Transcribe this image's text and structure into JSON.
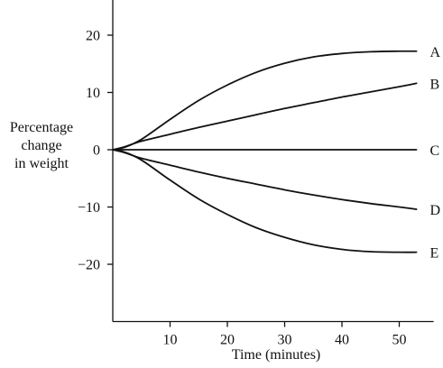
{
  "chart_data": {
    "type": "line",
    "title": "",
    "xlabel": "Time (minutes)",
    "ylabel_lines": [
      "Percentage",
      "change",
      "in weight"
    ],
    "xlim": [
      0,
      56
    ],
    "ylim": [
      -30,
      26
    ],
    "x_ticks": [
      10,
      20,
      30,
      40,
      50
    ],
    "y_ticks": [
      -20,
      -10,
      0,
      10,
      20
    ],
    "y_tick_labels": [
      "−20",
      "−10",
      "0",
      "10",
      "20"
    ],
    "grid": false,
    "legend": "labels at right end of each line",
    "line_color": "#111111",
    "series": [
      {
        "name": "A",
        "x": [
          0,
          2,
          5,
          10,
          15,
          20,
          25,
          30,
          35,
          40,
          45,
          50,
          53
        ],
        "y": [
          0,
          0.4,
          1.8,
          5.3,
          8.6,
          11.3,
          13.5,
          15.1,
          16.2,
          16.8,
          17.1,
          17.2,
          17.2
        ]
      },
      {
        "name": "B",
        "x": [
          0,
          2,
          5,
          10,
          15,
          20,
          25,
          30,
          35,
          40,
          45,
          50,
          53
        ],
        "y": [
          0,
          0.5,
          1.5,
          2.7,
          3.9,
          5.0,
          6.1,
          7.2,
          8.2,
          9.2,
          10.1,
          11.0,
          11.6
        ]
      },
      {
        "name": "C",
        "x": [
          0,
          53
        ],
        "y": [
          0,
          0
        ]
      },
      {
        "name": "D",
        "x": [
          0,
          2,
          5,
          10,
          15,
          20,
          25,
          30,
          35,
          40,
          45,
          50,
          53
        ],
        "y": [
          0,
          -0.5,
          -1.5,
          -2.7,
          -3.9,
          -5.0,
          -6.0,
          -7.0,
          -7.9,
          -8.7,
          -9.4,
          -10.0,
          -10.4
        ]
      },
      {
        "name": "E",
        "x": [
          0,
          2,
          5,
          10,
          15,
          20,
          25,
          30,
          35,
          40,
          45,
          50,
          53
        ],
        "y": [
          0,
          -0.4,
          -1.8,
          -5.3,
          -8.6,
          -11.3,
          -13.6,
          -15.3,
          -16.6,
          -17.4,
          -17.8,
          -17.9,
          -17.9
        ]
      }
    ]
  }
}
